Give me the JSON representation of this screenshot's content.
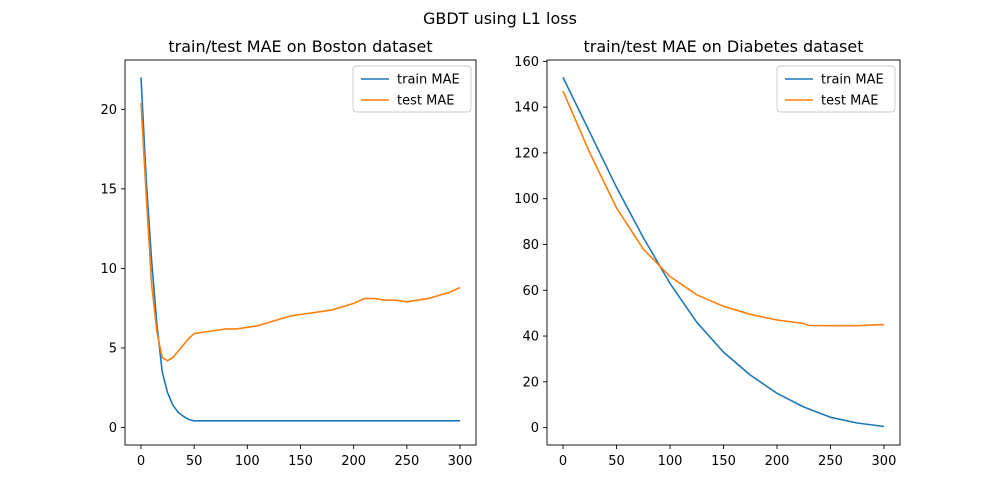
{
  "figure": {
    "title": "GBDT using L1 loss"
  },
  "chart_data": [
    {
      "type": "line",
      "title": "train/test MAE on Boston dataset",
      "xlabel": "",
      "ylabel": "",
      "xlim": [
        -15,
        315
      ],
      "ylim": [
        -1.1,
        23.1
      ],
      "xticks": [
        0,
        50,
        100,
        150,
        200,
        250,
        300
      ],
      "yticks": [
        0,
        5,
        10,
        15,
        20
      ],
      "grid": false,
      "legend": "top-right",
      "series": [
        {
          "name": "train MAE",
          "color": "#1f77b4",
          "x": [
            0,
            5,
            10,
            15,
            20,
            25,
            30,
            35,
            40,
            45,
            50,
            60,
            100,
            150,
            200,
            250,
            300
          ],
          "y": [
            22.0,
            15.5,
            10.5,
            6.5,
            3.5,
            2.2,
            1.4,
            0.95,
            0.7,
            0.5,
            0.42,
            0.42,
            0.42,
            0.42,
            0.42,
            0.42,
            0.42
          ]
        },
        {
          "name": "test MAE",
          "color": "#ff7f0e",
          "x": [
            0,
            5,
            10,
            15,
            20,
            25,
            30,
            35,
            40,
            45,
            50,
            60,
            70,
            80,
            90,
            100,
            110,
            120,
            130,
            140,
            150,
            160,
            170,
            180,
            190,
            200,
            210,
            220,
            230,
            240,
            250,
            260,
            270,
            280,
            290,
            300
          ],
          "y": [
            20.4,
            14.5,
            9.0,
            6.0,
            4.4,
            4.2,
            4.4,
            4.8,
            5.2,
            5.6,
            5.9,
            6.0,
            6.1,
            6.2,
            6.2,
            6.3,
            6.4,
            6.6,
            6.8,
            7.0,
            7.1,
            7.2,
            7.3,
            7.4,
            7.6,
            7.8,
            8.1,
            8.1,
            8.0,
            8.0,
            7.9,
            8.0,
            8.1,
            8.3,
            8.5,
            8.8
          ]
        }
      ]
    },
    {
      "type": "line",
      "title": "train/test MAE on Diabetes dataset",
      "xlabel": "",
      "ylabel": "",
      "xlim": [
        -15,
        315
      ],
      "ylim": [
        -7.6,
        160.6
      ],
      "xticks": [
        0,
        50,
        100,
        150,
        200,
        250,
        300
      ],
      "yticks": [
        0,
        20,
        40,
        60,
        80,
        100,
        120,
        140,
        160
      ],
      "grid": false,
      "legend": "top-right",
      "series": [
        {
          "name": "train MAE",
          "color": "#1f77b4",
          "x": [
            0,
            25,
            50,
            75,
            100,
            125,
            150,
            175,
            200,
            225,
            250,
            275,
            300
          ],
          "y": [
            153,
            129,
            105,
            83,
            63,
            46,
            33,
            23,
            15,
            9,
            4.5,
            2,
            0.5
          ]
        },
        {
          "name": "test MAE",
          "color": "#ff7f0e",
          "x": [
            0,
            25,
            50,
            75,
            100,
            125,
            150,
            175,
            200,
            225,
            230,
            250,
            275,
            300
          ],
          "y": [
            147,
            120,
            96,
            78,
            66,
            58,
            53,
            49.5,
            47,
            45.5,
            44.6,
            44.5,
            44.5,
            45
          ]
        }
      ]
    }
  ]
}
